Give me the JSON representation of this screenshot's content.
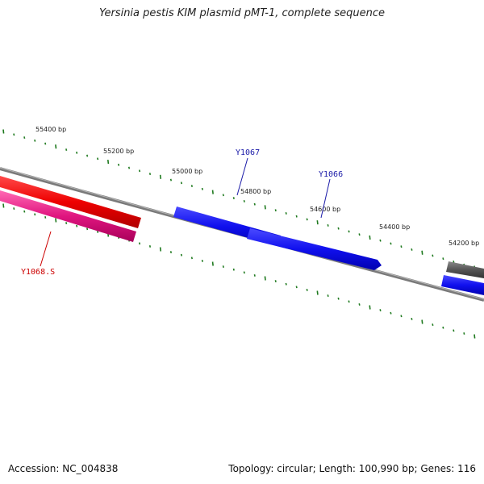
{
  "title": "Yersinia pestis KIM plasmid pMT-1, complete sequence",
  "footer": {
    "accession": "Accession: NC_004838",
    "summary": "Topology: circular; Length: 100,990 bp; Genes: 116"
  },
  "colors": {
    "backbone": "#7a7a7a",
    "tick": "#1f7a1f",
    "forward_gene": "#1010ee",
    "reverse_gene_red": "#ee0000",
    "reverse_gene_pink": "#e0157f",
    "gray_gene": "#555555",
    "label_blue": "#1a1aa8",
    "label_red": "#cc0000"
  },
  "tick_labels": [
    {
      "text": "55400 bp"
    },
    {
      "text": "55200 bp"
    },
    {
      "text": "55000 bp"
    },
    {
      "text": "54800 bp"
    },
    {
      "text": "54600 bp"
    },
    {
      "text": "54400 bp"
    },
    {
      "text": "54200 bp"
    }
  ],
  "genes": [
    {
      "label": "Y1067",
      "strand": "forward",
      "color": "#1010ee"
    },
    {
      "label": "Y1066",
      "strand": "forward",
      "color": "#1010ee"
    },
    {
      "label": "Y1068.S",
      "strand": "reverse",
      "color": "#e0157f"
    }
  ]
}
